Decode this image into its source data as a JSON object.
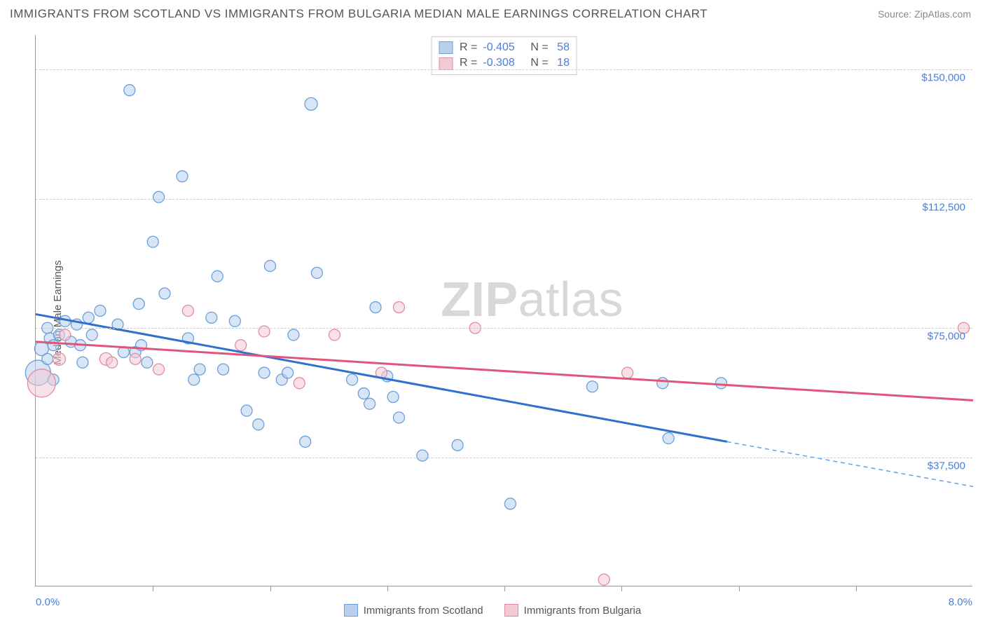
{
  "title": "IMMIGRANTS FROM SCOTLAND VS IMMIGRANTS FROM BULGARIA MEDIAN MALE EARNINGS CORRELATION CHART",
  "source": "Source: ZipAtlas.com",
  "y_axis_label": "Median Male Earnings",
  "watermark_bold": "ZIP",
  "watermark_rest": "atlas",
  "x_axis": {
    "min": 0,
    "max": 8,
    "label_min": "0.0%",
    "label_max": "8.0%",
    "ticks": [
      1,
      2,
      3,
      4,
      5,
      6,
      7
    ]
  },
  "y_axis": {
    "min": 0,
    "max": 160000,
    "gridlines": [
      {
        "value": 37500,
        "label": "$37,500"
      },
      {
        "value": 75000,
        "label": "$75,000"
      },
      {
        "value": 112500,
        "label": "$112,500"
      },
      {
        "value": 150000,
        "label": "$150,000"
      }
    ]
  },
  "series": [
    {
      "name": "Immigrants from Scotland",
      "color_fill": "#b8d0ee",
      "color_stroke": "#6b9fd8",
      "R": "-0.405",
      "N": "58",
      "trend": {
        "x1": 0,
        "y1": 79000,
        "x2": 5.9,
        "y2": 42000,
        "extend_x2": 8,
        "extend_y2": 29000,
        "color": "#2e6fd0"
      },
      "points": [
        {
          "x": 0.02,
          "y": 62000,
          "r": 18
        },
        {
          "x": 0.05,
          "y": 69000,
          "r": 10
        },
        {
          "x": 0.1,
          "y": 75000,
          "r": 8
        },
        {
          "x": 0.1,
          "y": 66000,
          "r": 8
        },
        {
          "x": 0.12,
          "y": 72000,
          "r": 8
        },
        {
          "x": 0.15,
          "y": 60000,
          "r": 8
        },
        {
          "x": 0.15,
          "y": 70000,
          "r": 8
        },
        {
          "x": 0.2,
          "y": 73000,
          "r": 8
        },
        {
          "x": 0.25,
          "y": 77000,
          "r": 8
        },
        {
          "x": 0.3,
          "y": 71000,
          "r": 8
        },
        {
          "x": 0.35,
          "y": 76000,
          "r": 8
        },
        {
          "x": 0.38,
          "y": 70000,
          "r": 8
        },
        {
          "x": 0.4,
          "y": 65000,
          "r": 8
        },
        {
          "x": 0.45,
          "y": 78000,
          "r": 8
        },
        {
          "x": 0.48,
          "y": 73000,
          "r": 8
        },
        {
          "x": 0.55,
          "y": 80000,
          "r": 8
        },
        {
          "x": 0.7,
          "y": 76000,
          "r": 8
        },
        {
          "x": 0.75,
          "y": 68000,
          "r": 8
        },
        {
          "x": 0.8,
          "y": 144000,
          "r": 8
        },
        {
          "x": 0.85,
          "y": 68000,
          "r": 8
        },
        {
          "x": 0.88,
          "y": 82000,
          "r": 8
        },
        {
          "x": 0.9,
          "y": 70000,
          "r": 8
        },
        {
          "x": 0.95,
          "y": 65000,
          "r": 8
        },
        {
          "x": 1.0,
          "y": 100000,
          "r": 8
        },
        {
          "x": 1.05,
          "y": 113000,
          "r": 8
        },
        {
          "x": 1.1,
          "y": 85000,
          "r": 8
        },
        {
          "x": 1.25,
          "y": 119000,
          "r": 8
        },
        {
          "x": 1.3,
          "y": 72000,
          "r": 8
        },
        {
          "x": 1.35,
          "y": 60000,
          "r": 8
        },
        {
          "x": 1.4,
          "y": 63000,
          "r": 8
        },
        {
          "x": 1.5,
          "y": 78000,
          "r": 8
        },
        {
          "x": 1.55,
          "y": 90000,
          "r": 8
        },
        {
          "x": 1.6,
          "y": 63000,
          "r": 8
        },
        {
          "x": 1.7,
          "y": 77000,
          "r": 8
        },
        {
          "x": 1.8,
          "y": 51000,
          "r": 8
        },
        {
          "x": 1.9,
          "y": 47000,
          "r": 8
        },
        {
          "x": 1.95,
          "y": 62000,
          "r": 8
        },
        {
          "x": 2.0,
          "y": 93000,
          "r": 8
        },
        {
          "x": 2.1,
          "y": 60000,
          "r": 8
        },
        {
          "x": 2.15,
          "y": 62000,
          "r": 8
        },
        {
          "x": 2.2,
          "y": 73000,
          "r": 8
        },
        {
          "x": 2.3,
          "y": 42000,
          "r": 8
        },
        {
          "x": 2.35,
          "y": 140000,
          "r": 9
        },
        {
          "x": 2.4,
          "y": 91000,
          "r": 8
        },
        {
          "x": 2.7,
          "y": 60000,
          "r": 8
        },
        {
          "x": 2.8,
          "y": 56000,
          "r": 8
        },
        {
          "x": 2.85,
          "y": 53000,
          "r": 8
        },
        {
          "x": 2.9,
          "y": 81000,
          "r": 8
        },
        {
          "x": 3.0,
          "y": 61000,
          "r": 8
        },
        {
          "x": 3.05,
          "y": 55000,
          "r": 8
        },
        {
          "x": 3.1,
          "y": 49000,
          "r": 8
        },
        {
          "x": 3.3,
          "y": 38000,
          "r": 8
        },
        {
          "x": 3.6,
          "y": 41000,
          "r": 8
        },
        {
          "x": 4.05,
          "y": 24000,
          "r": 8
        },
        {
          "x": 4.75,
          "y": 58000,
          "r": 8
        },
        {
          "x": 5.35,
          "y": 59000,
          "r": 8
        },
        {
          "x": 5.4,
          "y": 43000,
          "r": 8
        },
        {
          "x": 5.85,
          "y": 59000,
          "r": 8
        }
      ]
    },
    {
      "name": "Immigrants from Bulgaria",
      "color_fill": "#f3c9d4",
      "color_stroke": "#e28ba5",
      "R": "-0.308",
      "N": "18",
      "trend": {
        "x1": 0,
        "y1": 71000,
        "x2": 8,
        "y2": 54000,
        "color": "#e0567a"
      },
      "points": [
        {
          "x": 0.05,
          "y": 59000,
          "r": 20
        },
        {
          "x": 0.2,
          "y": 66000,
          "r": 9
        },
        {
          "x": 0.25,
          "y": 73000,
          "r": 8
        },
        {
          "x": 0.6,
          "y": 66000,
          "r": 9
        },
        {
          "x": 0.65,
          "y": 65000,
          "r": 8
        },
        {
          "x": 0.85,
          "y": 66000,
          "r": 8
        },
        {
          "x": 1.05,
          "y": 63000,
          "r": 8
        },
        {
          "x": 1.3,
          "y": 80000,
          "r": 8
        },
        {
          "x": 1.75,
          "y": 70000,
          "r": 8
        },
        {
          "x": 1.95,
          "y": 74000,
          "r": 8
        },
        {
          "x": 2.25,
          "y": 59000,
          "r": 8
        },
        {
          "x": 2.55,
          "y": 73000,
          "r": 8
        },
        {
          "x": 2.95,
          "y": 62000,
          "r": 8
        },
        {
          "x": 3.1,
          "y": 81000,
          "r": 8
        },
        {
          "x": 3.75,
          "y": 75000,
          "r": 8
        },
        {
          "x": 4.85,
          "y": 2000,
          "r": 8
        },
        {
          "x": 5.05,
          "y": 62000,
          "r": 8
        },
        {
          "x": 7.92,
          "y": 75000,
          "r": 8
        }
      ]
    }
  ]
}
